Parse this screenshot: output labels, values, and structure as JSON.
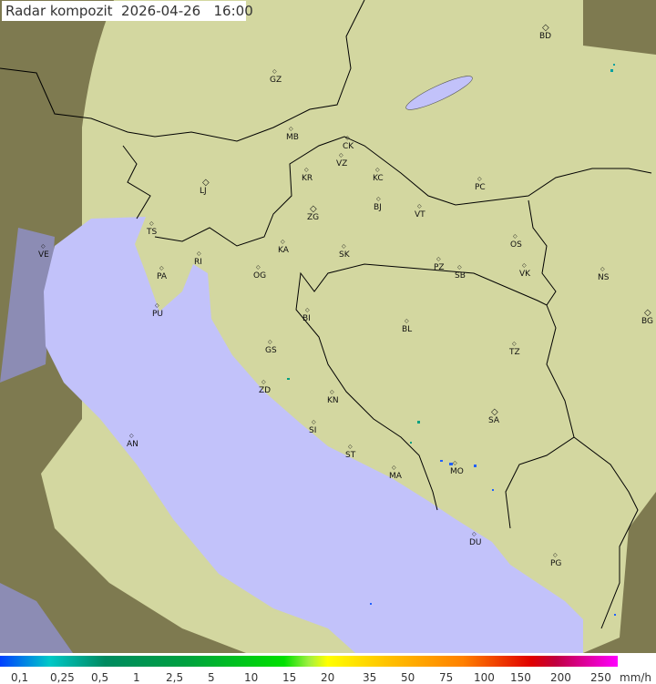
{
  "title": "Radar kompozit  2026-04-26   16:00",
  "colors": {
    "outside": "#7e7a50",
    "coverage": "#d8dca4",
    "sea": "#c2c2fa",
    "sea_outside": "#8c8cb4"
  },
  "cities": [
    "BD",
    "GZ",
    "MB",
    "CK",
    "VZ",
    "KR",
    "KC",
    "PC",
    "LJ",
    "ZG",
    "BJ",
    "VT",
    "TS",
    "VE",
    "KA",
    "SK",
    "OS",
    "RI",
    "PA",
    "OG",
    "PZ",
    "SB",
    "VK",
    "NS",
    "PU",
    "BI",
    "BG",
    "BL",
    "GS",
    "TZ",
    "ZD",
    "KN",
    "SA",
    "AN",
    "SI",
    "ST",
    "MO",
    "MA",
    "DU",
    "PG"
  ],
  "legend": {
    "labels": [
      "0,1",
      "0,25",
      "0,5",
      "1",
      "2,5",
      "5",
      "10",
      "15",
      "20",
      "35",
      "50",
      "75",
      "100",
      "150",
      "200",
      "250"
    ],
    "unit": "mm/h"
  }
}
